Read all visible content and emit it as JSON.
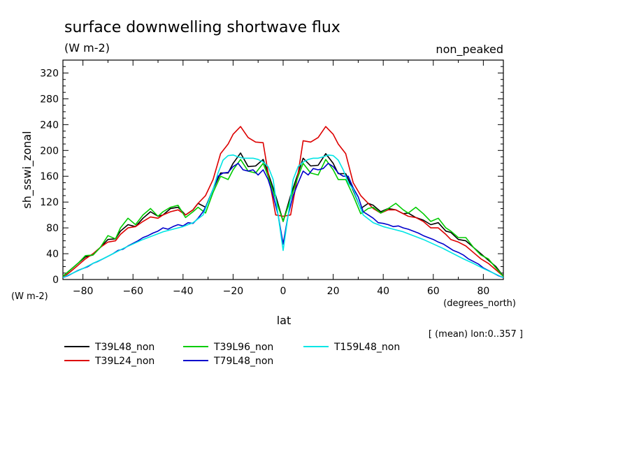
{
  "chart_data": {
    "type": "line",
    "title": "surface downwelling shortwave flux",
    "units": "(W m-2)",
    "annotation": "non_peaked",
    "ylabel": "sh_sswi_zonal",
    "yunits": "(W m-2)",
    "xlabel": "lat",
    "xunits": "(degrees_north)",
    "footer": "[ (mean) lon:0..357 ]",
    "xlim": [
      -88,
      88
    ],
    "ylim": [
      0,
      340
    ],
    "xticks": [
      -80,
      -60,
      -40,
      -20,
      0,
      20,
      40,
      60,
      80
    ],
    "yticks": [
      0,
      40,
      80,
      120,
      160,
      200,
      240,
      280,
      320
    ],
    "grid": false,
    "legend_position": "bottom-left",
    "series": [
      {
        "name": "T39L48_non",
        "color": "#000000",
        "x": [
          -88,
          -85,
          -82,
          -79,
          -76,
          -73,
          -70,
          -67,
          -65,
          -62,
          -59,
          -56,
          -53,
          -50,
          -48,
          -45,
          -42,
          -39,
          -36,
          -34,
          -31,
          -28,
          -25,
          -22,
          -20,
          -17,
          -14,
          -11,
          -8,
          -6,
          -3,
          0,
          3,
          6,
          8,
          11,
          14,
          17,
          20,
          22,
          25,
          28,
          31,
          34,
          36,
          39,
          42,
          45,
          48,
          50,
          53,
          56,
          59,
          62,
          65,
          67,
          70,
          73,
          76,
          79,
          82,
          85,
          88
        ],
        "y": [
          5,
          15,
          25,
          35,
          38,
          50,
          62,
          63,
          75,
          85,
          82,
          95,
          105,
          98,
          100,
          110,
          112,
          100,
          108,
          118,
          112,
          140,
          165,
          165,
          180,
          196,
          175,
          176,
          186,
          165,
          130,
          90,
          130,
          165,
          188,
          176,
          177,
          195,
          180,
          164,
          164,
          138,
          110,
          118,
          115,
          105,
          110,
          108,
          102,
          103,
          96,
          92,
          85,
          88,
          75,
          73,
          62,
          60,
          50,
          40,
          30,
          20,
          5
        ]
      },
      {
        "name": "T39L24_non",
        "color": "#dd0000",
        "x": [
          -88,
          -85,
          -82,
          -79,
          -76,
          -73,
          -70,
          -67,
          -65,
          -62,
          -59,
          -56,
          -53,
          -50,
          -48,
          -45,
          -42,
          -39,
          -36,
          -34,
          -31,
          -28,
          -25,
          -22,
          -20,
          -17,
          -14,
          -11,
          -8,
          -6,
          -3,
          0,
          3,
          6,
          8,
          11,
          14,
          17,
          20,
          22,
          25,
          28,
          31,
          34,
          36,
          39,
          42,
          45,
          48,
          50,
          53,
          56,
          59,
          62,
          65,
          67,
          70,
          73,
          76,
          79,
          82,
          85,
          88
        ],
        "y": [
          3,
          12,
          22,
          32,
          40,
          50,
          58,
          60,
          70,
          80,
          82,
          90,
          97,
          95,
          100,
          105,
          108,
          100,
          108,
          118,
          130,
          155,
          195,
          210,
          225,
          237,
          220,
          213,
          212,
          165,
          100,
          98,
          100,
          165,
          215,
          213,
          220,
          237,
          225,
          210,
          195,
          150,
          130,
          118,
          110,
          103,
          108,
          108,
          102,
          98,
          96,
          90,
          80,
          80,
          70,
          62,
          58,
          52,
          42,
          32,
          25,
          15,
          5
        ]
      },
      {
        "name": "T39L96_non",
        "color": "#00cc00",
        "x": [
          -88,
          -85,
          -82,
          -79,
          -76,
          -73,
          -70,
          -67,
          -65,
          -62,
          -59,
          -56,
          -53,
          -50,
          -48,
          -45,
          -42,
          -39,
          -36,
          -34,
          -31,
          -28,
          -25,
          -22,
          -20,
          -17,
          -14,
          -11,
          -8,
          -6,
          -3,
          0,
          3,
          6,
          8,
          11,
          14,
          17,
          20,
          22,
          25,
          28,
          31,
          34,
          36,
          39,
          42,
          45,
          48,
          50,
          53,
          56,
          59,
          62,
          65,
          67,
          70,
          73,
          76,
          79,
          82,
          85,
          88
        ],
        "y": [
          5,
          15,
          25,
          37,
          38,
          50,
          68,
          63,
          80,
          95,
          85,
          100,
          110,
          98,
          105,
          112,
          115,
          96,
          105,
          112,
          103,
          135,
          160,
          155,
          170,
          186,
          168,
          165,
          180,
          160,
          125,
          90,
          125,
          160,
          180,
          165,
          162,
          186,
          170,
          155,
          155,
          130,
          102,
          110,
          112,
          103,
          110,
          118,
          108,
          103,
          112,
          102,
          90,
          95,
          80,
          75,
          65,
          65,
          50,
          38,
          32,
          18,
          5
        ]
      },
      {
        "name": "T79L48_non",
        "color": "#0000cc",
        "x": [
          -88,
          -86,
          -84,
          -82,
          -80,
          -78,
          -76,
          -74,
          -72,
          -70,
          -68,
          -66,
          -64,
          -62,
          -60,
          -58,
          -56,
          -54,
          -52,
          -50,
          -48,
          -46,
          -44,
          -42,
          -40,
          -38,
          -36,
          -34,
          -32,
          -30,
          -28,
          -26,
          -24,
          -22,
          -20,
          -18,
          -16,
          -14,
          -12,
          -10,
          -8,
          -6,
          -4,
          -2,
          0,
          2,
          4,
          6,
          8,
          10,
          12,
          14,
          16,
          18,
          20,
          22,
          24,
          26,
          28,
          30,
          32,
          34,
          36,
          38,
          40,
          42,
          44,
          46,
          48,
          50,
          52,
          54,
          56,
          58,
          60,
          62,
          64,
          66,
          68,
          70,
          72,
          74,
          76,
          78,
          80,
          82,
          84,
          86,
          88
        ],
        "y": [
          3,
          6,
          10,
          14,
          17,
          20,
          25,
          28,
          32,
          36,
          40,
          45,
          47,
          52,
          56,
          60,
          65,
          68,
          72,
          75,
          80,
          78,
          82,
          85,
          83,
          88,
          87,
          95,
          105,
          120,
          140,
          160,
          165,
          166,
          175,
          180,
          170,
          168,
          170,
          162,
          170,
          155,
          130,
          100,
          55,
          100,
          130,
          150,
          168,
          162,
          172,
          170,
          172,
          180,
          175,
          165,
          160,
          160,
          142,
          128,
          105,
          100,
          95,
          88,
          87,
          85,
          82,
          83,
          80,
          78,
          75,
          72,
          68,
          65,
          62,
          58,
          55,
          50,
          45,
          42,
          38,
          32,
          28,
          24,
          18,
          14,
          10,
          6,
          3
        ]
      },
      {
        "name": "T159L48_non",
        "color": "#00e5e5",
        "x": [
          -88,
          -84,
          -80,
          -76,
          -72,
          -68,
          -64,
          -60,
          -56,
          -52,
          -48,
          -44,
          -40,
          -36,
          -32,
          -28,
          -26,
          -24,
          -22,
          -20,
          -18,
          -16,
          -14,
          -12,
          -10,
          -8,
          -6,
          -4,
          -2,
          0,
          2,
          4,
          6,
          8,
          10,
          12,
          14,
          16,
          18,
          20,
          22,
          24,
          26,
          28,
          32,
          36,
          40,
          44,
          48,
          52,
          56,
          60,
          64,
          68,
          72,
          76,
          80,
          84,
          88
        ],
        "y": [
          3,
          10,
          17,
          25,
          32,
          40,
          48,
          55,
          62,
          68,
          74,
          78,
          82,
          88,
          100,
          140,
          165,
          185,
          192,
          193,
          190,
          188,
          188,
          188,
          186,
          182,
          175,
          155,
          100,
          45,
          100,
          155,
          175,
          182,
          186,
          188,
          188,
          190,
          193,
          192,
          185,
          170,
          150,
          140,
          100,
          88,
          82,
          78,
          74,
          68,
          62,
          55,
          48,
          40,
          32,
          25,
          17,
          10,
          3
        ]
      }
    ]
  }
}
